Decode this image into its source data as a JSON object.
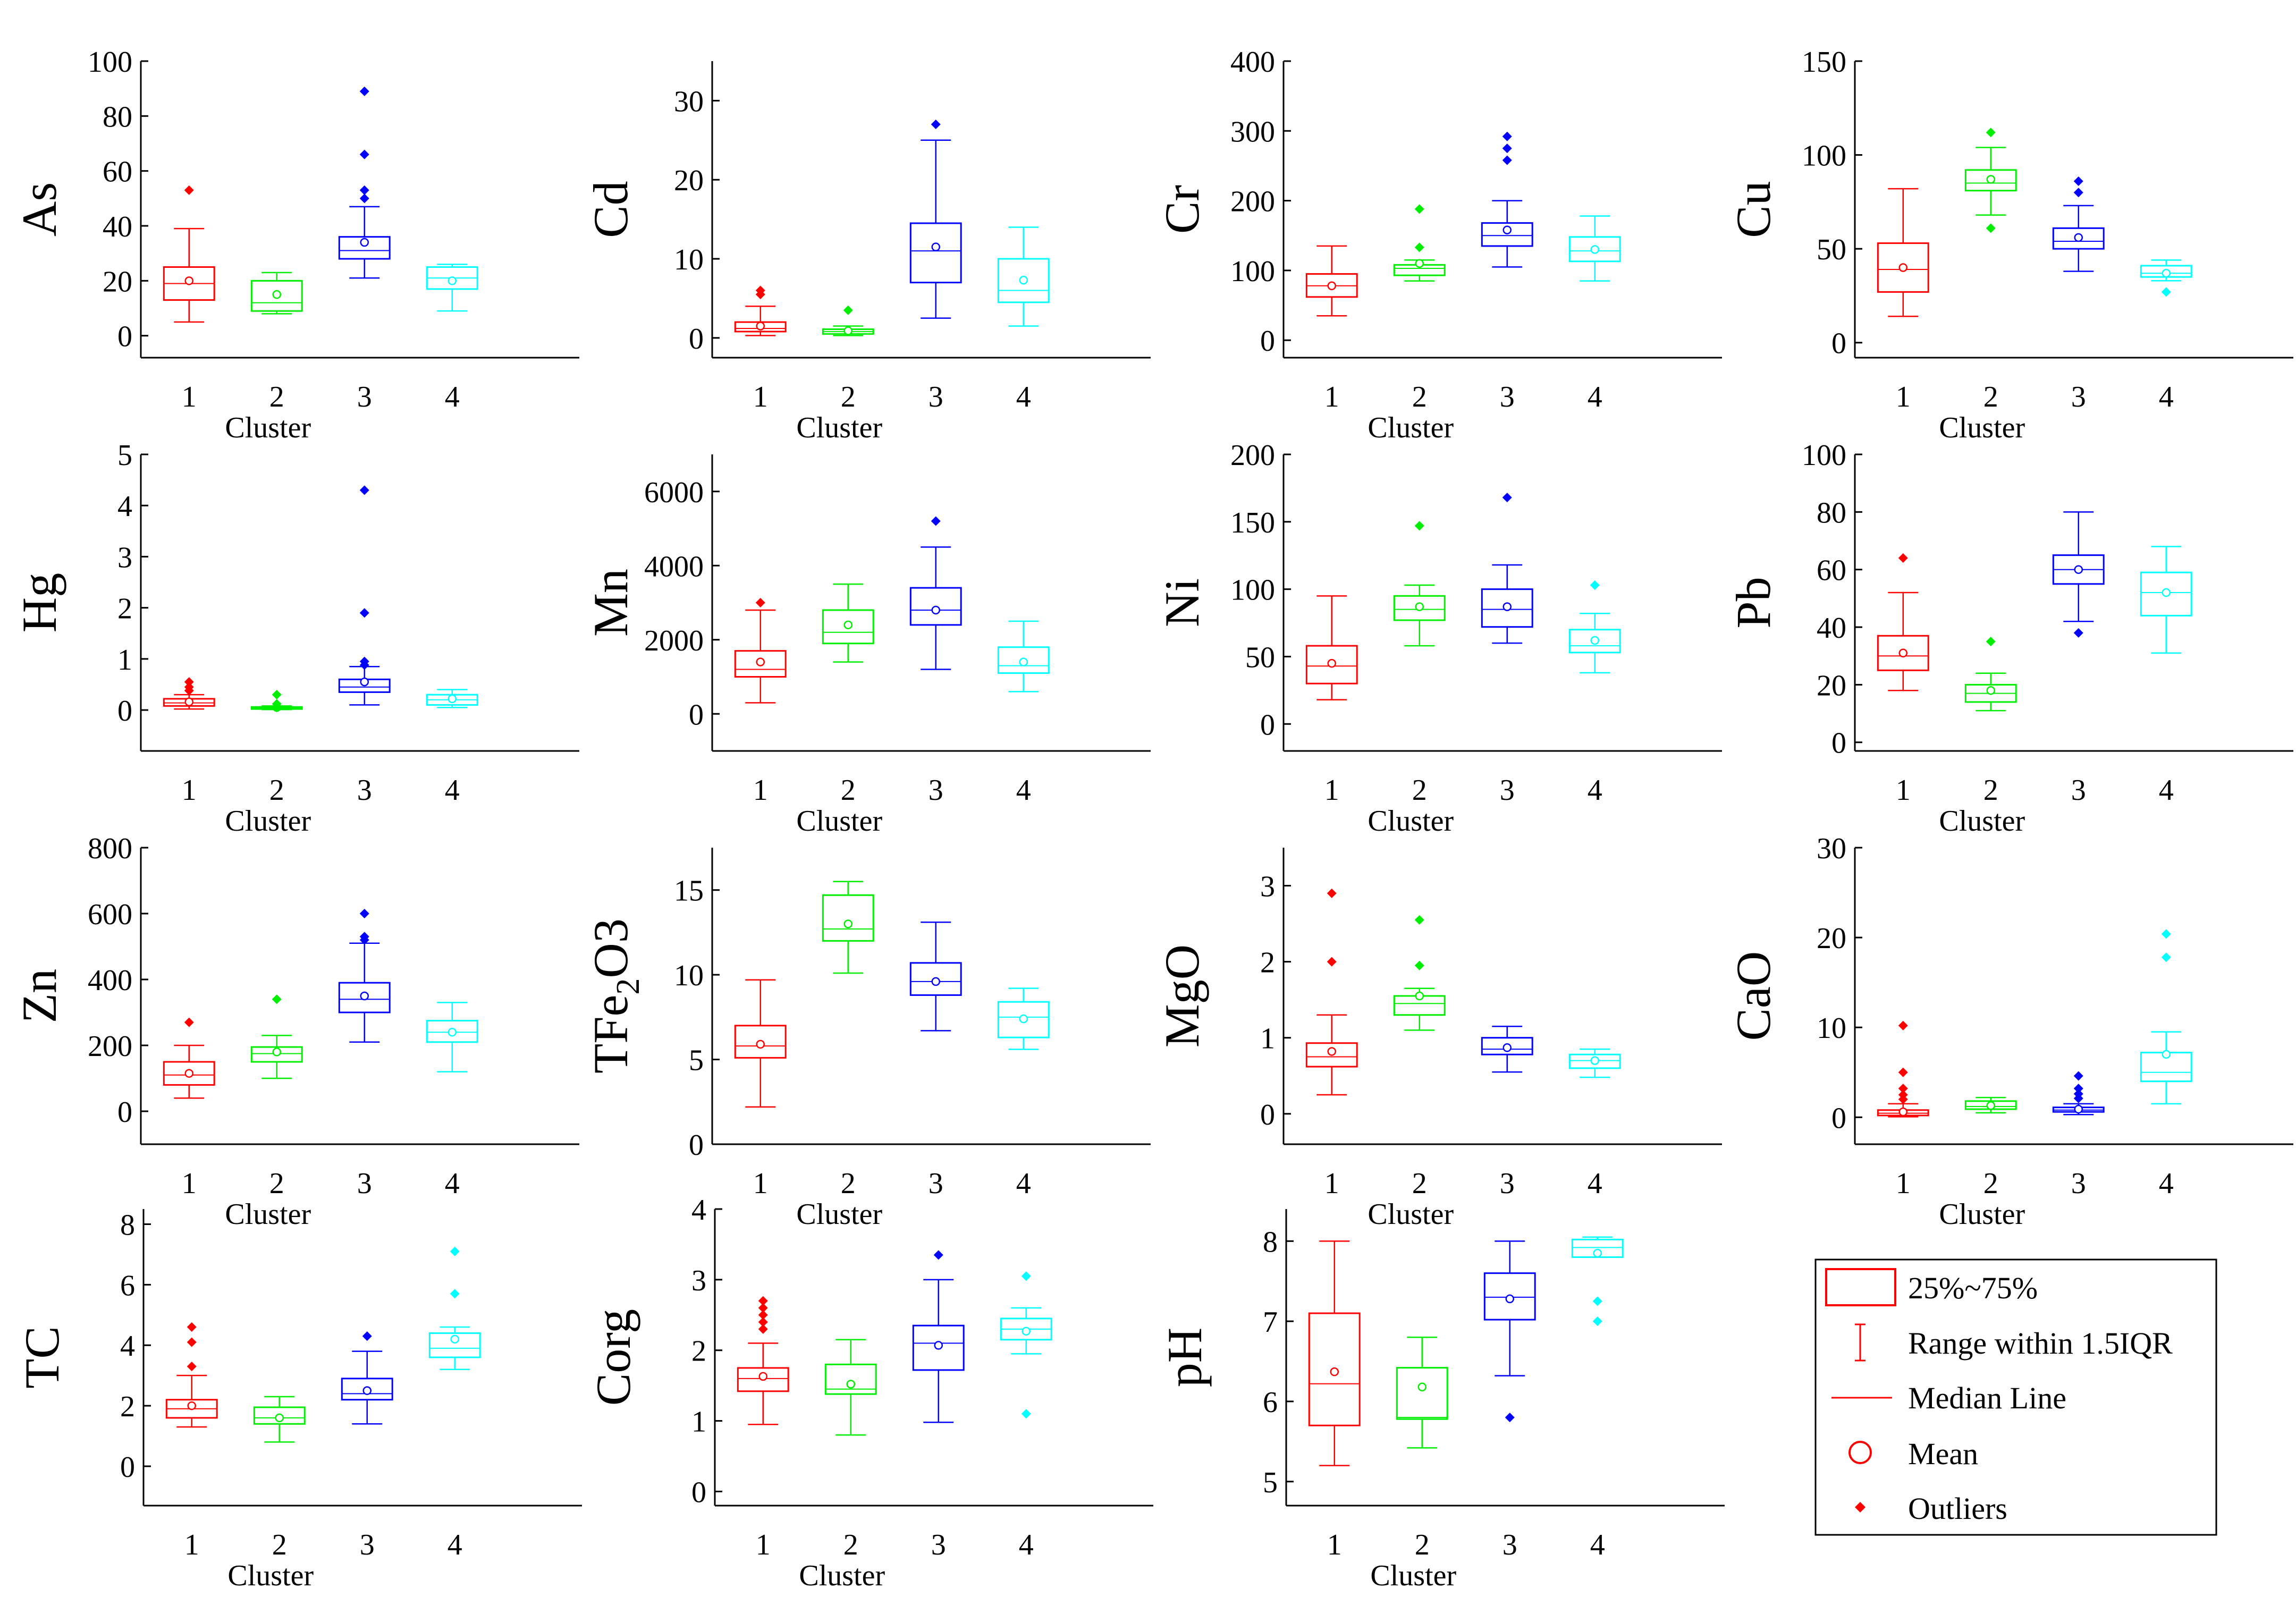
{
  "colors": [
    "#ff0000",
    "#00ee00",
    "#0000ff",
    "#00ffff"
  ],
  "legend": {
    "box": "25%~75%",
    "whisker": "Range within 1.5IQR",
    "median": "Median Line",
    "mean": "Mean",
    "outliers": "Outliers"
  },
  "chart_data": [
    {
      "type": "box",
      "ylabel": "As",
      "xlabel": "Cluster",
      "categories": [
        "1",
        "2",
        "3",
        "4"
      ],
      "ylim": [
        -8,
        100
      ],
      "yticks": [
        0,
        20,
        40,
        60,
        80,
        100
      ],
      "boxes": [
        {
          "q1": 13,
          "median": 19,
          "q3": 25,
          "wlo": 5,
          "whi": 39,
          "mean": 20,
          "outliers": [
            53
          ]
        },
        {
          "q1": 9,
          "median": 12,
          "q3": 20,
          "wlo": 8,
          "whi": 23,
          "mean": 15,
          "outliers": []
        },
        {
          "q1": 28,
          "median": 31,
          "q3": 36,
          "wlo": 21,
          "whi": 47,
          "mean": 34,
          "outliers": [
            89,
            66,
            53,
            50
          ]
        },
        {
          "q1": 17,
          "median": 21,
          "q3": 25,
          "wlo": 9,
          "whi": 26,
          "mean": 20,
          "outliers": []
        }
      ]
    },
    {
      "type": "box",
      "ylabel": "Cd",
      "xlabel": "Cluster",
      "categories": [
        "1",
        "2",
        "3",
        "4"
      ],
      "ylim": [
        -2.5,
        35
      ],
      "yticks": [
        0,
        10,
        20,
        30
      ],
      "boxes": [
        {
          "q1": 0.8,
          "median": 1.2,
          "q3": 2.0,
          "wlo": 0.3,
          "whi": 4.0,
          "mean": 1.5,
          "outliers": [
            6.0,
            5.5
          ]
        },
        {
          "q1": 0.5,
          "median": 0.8,
          "q3": 1.1,
          "wlo": 0.3,
          "whi": 1.5,
          "mean": 0.9,
          "outliers": [
            3.5
          ]
        },
        {
          "q1": 7,
          "median": 11,
          "q3": 14.5,
          "wlo": 2.5,
          "whi": 25,
          "mean": 11.5,
          "outliers": [
            27
          ]
        },
        {
          "q1": 4.5,
          "median": 6,
          "q3": 10,
          "wlo": 1.5,
          "whi": 14,
          "mean": 7.3,
          "outliers": []
        }
      ]
    },
    {
      "type": "box",
      "ylabel": "Cr",
      "xlabel": "Cluster",
      "categories": [
        "1",
        "2",
        "3",
        "4"
      ],
      "ylim": [
        -25,
        400
      ],
      "yticks": [
        0,
        100,
        200,
        300,
        400
      ],
      "boxes": [
        {
          "q1": 62,
          "median": 78,
          "q3": 95,
          "wlo": 35,
          "whi": 135,
          "mean": 78,
          "outliers": []
        },
        {
          "q1": 93,
          "median": 103,
          "q3": 108,
          "wlo": 85,
          "whi": 115,
          "mean": 110,
          "outliers": [
            188,
            133
          ]
        },
        {
          "q1": 135,
          "median": 150,
          "q3": 168,
          "wlo": 105,
          "whi": 200,
          "mean": 158,
          "outliers": [
            292,
            275,
            258
          ]
        },
        {
          "q1": 113,
          "median": 128,
          "q3": 148,
          "wlo": 85,
          "whi": 178,
          "mean": 130,
          "outliers": []
        }
      ]
    },
    {
      "type": "box",
      "ylabel": "Cu",
      "xlabel": "Cluster",
      "categories": [
        "1",
        "2",
        "3",
        "4"
      ],
      "ylim": [
        -8,
        150
      ],
      "yticks": [
        0,
        50,
        100,
        150
      ],
      "boxes": [
        {
          "q1": 27,
          "median": 39,
          "q3": 53,
          "wlo": 14,
          "whi": 82,
          "mean": 40,
          "outliers": []
        },
        {
          "q1": 81,
          "median": 85,
          "q3": 92,
          "wlo": 68,
          "whi": 104,
          "mean": 87,
          "outliers": [
            112,
            61
          ]
        },
        {
          "q1": 50,
          "median": 54,
          "q3": 61,
          "wlo": 38,
          "whi": 73,
          "mean": 56,
          "outliers": [
            86,
            80
          ]
        },
        {
          "q1": 35,
          "median": 37,
          "q3": 41,
          "wlo": 33,
          "whi": 44,
          "mean": 37,
          "outliers": [
            27
          ]
        }
      ]
    },
    {
      "type": "box",
      "ylabel": "Hg",
      "xlabel": "Cluster",
      "categories": [
        "1",
        "2",
        "3",
        "4"
      ],
      "ylim": [
        -0.8,
        5
      ],
      "yticks": [
        0,
        1,
        2,
        3,
        4,
        5
      ],
      "boxes": [
        {
          "q1": 0.08,
          "median": 0.14,
          "q3": 0.22,
          "wlo": 0.02,
          "whi": 0.3,
          "mean": 0.16,
          "outliers": [
            0.55,
            0.45,
            0.38
          ]
        },
        {
          "q1": 0.02,
          "median": 0.04,
          "q3": 0.06,
          "wlo": 0.01,
          "whi": 0.08,
          "mean": 0.05,
          "outliers": [
            0.3,
            0.12,
            0.05
          ]
        },
        {
          "q1": 0.35,
          "median": 0.45,
          "q3": 0.6,
          "wlo": 0.1,
          "whi": 0.85,
          "mean": 0.55,
          "outliers": [
            4.3,
            1.9,
            0.95,
            0.88
          ]
        },
        {
          "q1": 0.1,
          "median": 0.2,
          "q3": 0.3,
          "wlo": 0.05,
          "whi": 0.4,
          "mean": 0.22,
          "outliers": []
        }
      ]
    },
    {
      "type": "box",
      "ylabel": "Mn",
      "xlabel": "Cluster",
      "categories": [
        "1",
        "2",
        "3",
        "4"
      ],
      "ylim": [
        -1000,
        7000
      ],
      "yticks": [
        0,
        2000,
        4000,
        6000
      ],
      "boxes": [
        {
          "q1": 1000,
          "median": 1200,
          "q3": 1700,
          "wlo": 300,
          "whi": 2800,
          "mean": 1400,
          "outliers": [
            3000
          ]
        },
        {
          "q1": 1900,
          "median": 2200,
          "q3": 2800,
          "wlo": 1400,
          "whi": 3500,
          "mean": 2400,
          "outliers": []
        },
        {
          "q1": 2400,
          "median": 2800,
          "q3": 3400,
          "wlo": 1200,
          "whi": 4500,
          "mean": 2800,
          "outliers": [
            5200
          ]
        },
        {
          "q1": 1100,
          "median": 1300,
          "q3": 1800,
          "wlo": 600,
          "whi": 2500,
          "mean": 1400,
          "outliers": []
        }
      ]
    },
    {
      "type": "box",
      "ylabel": "Ni",
      "xlabel": "Cluster",
      "categories": [
        "1",
        "2",
        "3",
        "4"
      ],
      "ylim": [
        -20,
        200
      ],
      "yticks": [
        0,
        50,
        100,
        150,
        200
      ],
      "boxes": [
        {
          "q1": 30,
          "median": 43,
          "q3": 58,
          "wlo": 18,
          "whi": 95,
          "mean": 45,
          "outliers": []
        },
        {
          "q1": 77,
          "median": 85,
          "q3": 95,
          "wlo": 58,
          "whi": 103,
          "mean": 87,
          "outliers": [
            147
          ]
        },
        {
          "q1": 72,
          "median": 85,
          "q3": 100,
          "wlo": 60,
          "whi": 118,
          "mean": 87,
          "outliers": [
            168
          ]
        },
        {
          "q1": 53,
          "median": 58,
          "q3": 70,
          "wlo": 38,
          "whi": 82,
          "mean": 62,
          "outliers": [
            103
          ]
        }
      ]
    },
    {
      "type": "box",
      "ylabel": "Pb",
      "xlabel": "Cluster",
      "categories": [
        "1",
        "2",
        "3",
        "4"
      ],
      "ylim": [
        -3,
        100
      ],
      "yticks": [
        0,
        20,
        40,
        60,
        80,
        100
      ],
      "boxes": [
        {
          "q1": 25,
          "median": 30,
          "q3": 37,
          "wlo": 18,
          "whi": 52,
          "mean": 31,
          "outliers": [
            64
          ]
        },
        {
          "q1": 14,
          "median": 17,
          "q3": 20,
          "wlo": 11,
          "whi": 24,
          "mean": 18,
          "outliers": [
            35
          ]
        },
        {
          "q1": 55,
          "median": 60,
          "q3": 65,
          "wlo": 42,
          "whi": 80,
          "mean": 60,
          "outliers": [
            38
          ]
        },
        {
          "q1": 44,
          "median": 52,
          "q3": 59,
          "wlo": 31,
          "whi": 68,
          "mean": 52,
          "outliers": []
        }
      ]
    },
    {
      "type": "box",
      "ylabel": "Zn",
      "xlabel": "Cluster",
      "categories": [
        "1",
        "2",
        "3",
        "4"
      ],
      "ylim": [
        -100,
        800
      ],
      "yticks": [
        0,
        200,
        400,
        600,
        800
      ],
      "boxes": [
        {
          "q1": 80,
          "median": 110,
          "q3": 150,
          "wlo": 40,
          "whi": 200,
          "mean": 115,
          "outliers": [
            270
          ]
        },
        {
          "q1": 150,
          "median": 175,
          "q3": 195,
          "wlo": 100,
          "whi": 230,
          "mean": 180,
          "outliers": [
            340
          ]
        },
        {
          "q1": 300,
          "median": 340,
          "q3": 390,
          "wlo": 210,
          "whi": 510,
          "mean": 350,
          "outliers": [
            600,
            530,
            520
          ]
        },
        {
          "q1": 210,
          "median": 240,
          "q3": 275,
          "wlo": 120,
          "whi": 330,
          "mean": 240,
          "outliers": []
        }
      ]
    },
    {
      "type": "box",
      "ylabel": "TFe2O3",
      "xlabel": "Cluster",
      "categories": [
        "1",
        "2",
        "3",
        "4"
      ],
      "ylim": [
        0,
        17.5
      ],
      "yticks": [
        0,
        5,
        10,
        15
      ],
      "boxes": [
        {
          "q1": 5.1,
          "median": 5.8,
          "q3": 7.0,
          "wlo": 2.2,
          "whi": 9.7,
          "mean": 5.9,
          "outliers": []
        },
        {
          "q1": 12.0,
          "median": 12.7,
          "q3": 14.7,
          "wlo": 10.1,
          "whi": 15.5,
          "mean": 13.0,
          "outliers": []
        },
        {
          "q1": 8.8,
          "median": 9.6,
          "q3": 10.7,
          "wlo": 6.7,
          "whi": 13.1,
          "mean": 9.6,
          "outliers": []
        },
        {
          "q1": 6.3,
          "median": 7.5,
          "q3": 8.4,
          "wlo": 5.6,
          "whi": 9.2,
          "mean": 7.4,
          "outliers": []
        }
      ]
    },
    {
      "type": "box",
      "ylabel": "MgO",
      "xlabel": "Cluster",
      "categories": [
        "1",
        "2",
        "3",
        "4"
      ],
      "ylim": [
        -0.4,
        3.5
      ],
      "yticks": [
        0,
        1,
        2,
        3
      ],
      "boxes": [
        {
          "q1": 0.62,
          "median": 0.75,
          "q3": 0.93,
          "wlo": 0.25,
          "whi": 1.3,
          "mean": 0.82,
          "outliers": [
            2.9,
            2.0
          ]
        },
        {
          "q1": 1.3,
          "median": 1.45,
          "q3": 1.55,
          "wlo": 1.1,
          "whi": 1.65,
          "mean": 1.55,
          "outliers": [
            2.55,
            1.95
          ]
        },
        {
          "q1": 0.78,
          "median": 0.85,
          "q3": 1.0,
          "wlo": 0.55,
          "whi": 1.15,
          "mean": 0.87,
          "outliers": []
        },
        {
          "q1": 0.6,
          "median": 0.7,
          "q3": 0.78,
          "wlo": 0.48,
          "whi": 0.85,
          "mean": 0.7,
          "outliers": []
        }
      ]
    },
    {
      "type": "box",
      "ylabel": "CaO",
      "xlabel": "Cluster",
      "categories": [
        "1",
        "2",
        "3",
        "4"
      ],
      "ylim": [
        -3,
        30
      ],
      "yticks": [
        0,
        10,
        20,
        30
      ],
      "boxes": [
        {
          "q1": 0.2,
          "median": 0.45,
          "q3": 0.8,
          "wlo": 0.05,
          "whi": 1.5,
          "mean": 0.6,
          "outliers": [
            10.2,
            5,
            3.2,
            2.5,
            2
          ]
        },
        {
          "q1": 0.9,
          "median": 1.2,
          "q3": 1.8,
          "wlo": 0.5,
          "whi": 2.2,
          "mean": 1.3,
          "outliers": []
        },
        {
          "q1": 0.6,
          "median": 0.8,
          "q3": 1.1,
          "wlo": 0.3,
          "whi": 1.5,
          "mean": 0.9,
          "outliers": [
            4.6,
            3.2,
            2.6,
            2.1
          ]
        },
        {
          "q1": 4,
          "median": 5,
          "q3": 7.2,
          "wlo": 1.5,
          "whi": 9.5,
          "mean": 7,
          "outliers": [
            20.4,
            17.8
          ]
        }
      ]
    },
    {
      "type": "box",
      "ylabel": "TC",
      "xlabel": "Cluster",
      "categories": [
        "1",
        "2",
        "3",
        "4"
      ],
      "ylim": [
        -1.3,
        8.5
      ],
      "yticks": [
        0,
        2,
        4,
        6,
        8
      ],
      "boxes": [
        {
          "q1": 1.6,
          "median": 1.9,
          "q3": 2.2,
          "wlo": 1.3,
          "whi": 3.0,
          "mean": 2.0,
          "outliers": [
            4.6,
            4.1,
            3.3
          ]
        },
        {
          "q1": 1.4,
          "median": 1.6,
          "q3": 1.95,
          "wlo": 0.8,
          "whi": 2.3,
          "mean": 1.6,
          "outliers": []
        },
        {
          "q1": 2.2,
          "median": 2.4,
          "q3": 2.9,
          "wlo": 1.4,
          "whi": 3.8,
          "mean": 2.5,
          "outliers": [
            4.3
          ]
        },
        {
          "q1": 3.6,
          "median": 3.9,
          "q3": 4.4,
          "wlo": 3.2,
          "whi": 4.6,
          "mean": 4.2,
          "outliers": [
            7.1,
            5.7
          ]
        }
      ]
    },
    {
      "type": "box",
      "ylabel": "Corg",
      "xlabel": "Cluster",
      "categories": [
        "1",
        "2",
        "3",
        "4"
      ],
      "ylim": [
        -0.2,
        4
      ],
      "yticks": [
        0,
        1,
        2,
        3,
        4
      ],
      "boxes": [
        {
          "q1": 1.42,
          "median": 1.6,
          "q3": 1.75,
          "wlo": 0.95,
          "whi": 2.1,
          "mean": 1.63,
          "outliers": [
            2.7,
            2.6,
            2.5,
            2.4,
            2.3
          ]
        },
        {
          "q1": 1.38,
          "median": 1.45,
          "q3": 1.8,
          "wlo": 0.8,
          "whi": 2.15,
          "mean": 1.52,
          "outliers": []
        },
        {
          "q1": 1.72,
          "median": 2.1,
          "q3": 2.35,
          "wlo": 0.98,
          "whi": 3.0,
          "mean": 2.07,
          "outliers": [
            3.35
          ]
        },
        {
          "q1": 2.15,
          "median": 2.3,
          "q3": 2.45,
          "wlo": 1.95,
          "whi": 2.6,
          "mean": 2.27,
          "outliers": [
            3.05,
            1.1
          ]
        }
      ]
    },
    {
      "type": "box",
      "ylabel": "pH",
      "xlabel": "Cluster",
      "categories": [
        "1",
        "2",
        "3",
        "4"
      ],
      "ylim": [
        4.7,
        8.4
      ],
      "yticks": [
        5,
        6,
        7,
        8
      ],
      "boxes": [
        {
          "q1": 5.7,
          "median": 6.22,
          "q3": 7.1,
          "wlo": 5.2,
          "whi": 8.0,
          "mean": 6.37,
          "outliers": []
        },
        {
          "q1": 5.78,
          "median": 5.8,
          "q3": 6.42,
          "wlo": 5.42,
          "whi": 6.8,
          "mean": 6.18,
          "outliers": []
        },
        {
          "q1": 7.02,
          "median": 7.3,
          "q3": 7.6,
          "wlo": 6.32,
          "whi": 8.0,
          "mean": 7.28,
          "outliers": [
            5.8
          ]
        },
        {
          "q1": 7.8,
          "median": 7.92,
          "q3": 8.02,
          "wlo": 7.8,
          "whi": 8.05,
          "mean": 7.85,
          "outliers": [
            7.25,
            7.0
          ]
        }
      ]
    }
  ]
}
